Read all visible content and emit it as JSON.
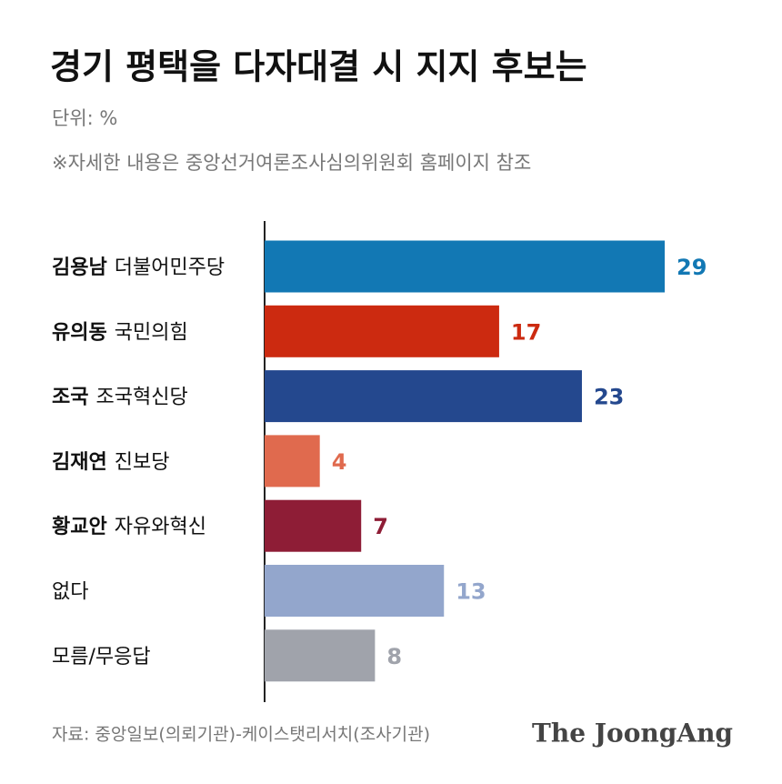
{
  "chart_data": {
    "type": "hbar",
    "title": "경기 평택을 다자대결 시 지지 후보는",
    "unit": "단위: %",
    "note": "※자세한 내용은 중앙선거여론조사심의위원회 홈페이지 참조",
    "source": "자료: 중앙일보(의뢰기관)-케이스탯리서치(조사기관)",
    "brand": "The JoongAng",
    "categories": [
      "김용남",
      "유의동",
      "조국",
      "김재연",
      "황교안",
      "없다",
      "모름/무응답"
    ],
    "parties": [
      "더불어민주당",
      "국민의힘",
      "조국혁신당",
      "진보당",
      "자유와혁신",
      null,
      null
    ],
    "values": [
      29,
      17,
      23,
      4,
      7,
      13,
      8
    ],
    "colors": [
      "#1278b4",
      "#cc2a10",
      "#24488e",
      "#e06a4e",
      "#8e1d36",
      "#93a6cc",
      "#a0a3ab"
    ],
    "xlim": [
      0,
      29
    ]
  }
}
